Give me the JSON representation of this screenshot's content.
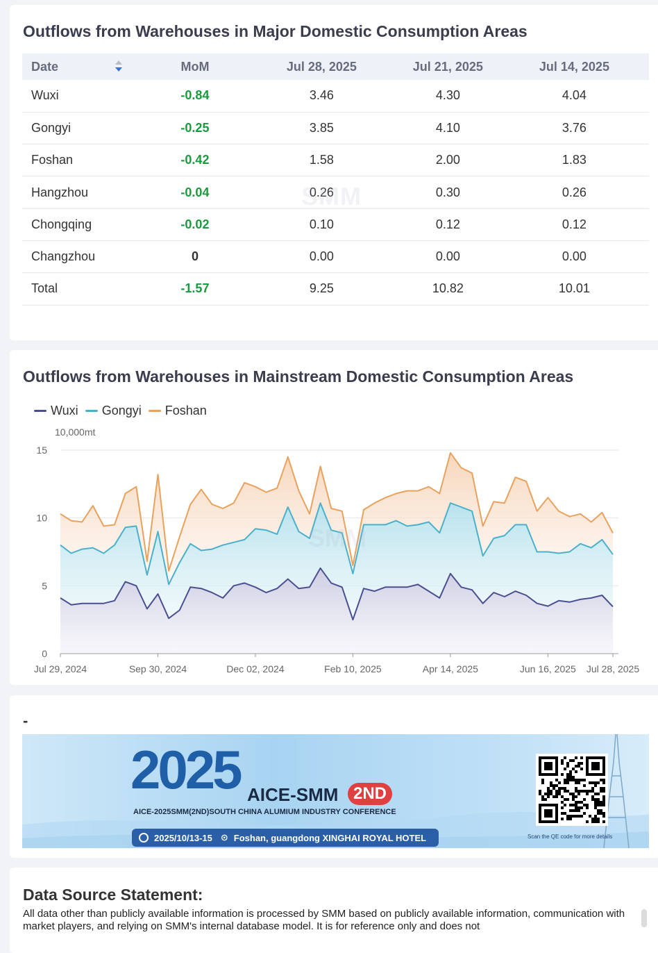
{
  "table_card": {
    "title": "Outflows from Warehouses in Major Domestic Consumption Areas",
    "headers": [
      "Date",
      "MoM",
      "Jul 28, 2025",
      "Jul 21, 2025",
      "Jul 14, 2025"
    ],
    "rows": [
      {
        "name": "Wuxi",
        "mom": "-0.84",
        "v1": "3.46",
        "v2": "4.30",
        "v3": "4.04"
      },
      {
        "name": "Gongyi",
        "mom": "-0.25",
        "v1": "3.85",
        "v2": "4.10",
        "v3": "3.76"
      },
      {
        "name": "Foshan",
        "mom": "-0.42",
        "v1": "1.58",
        "v2": "2.00",
        "v3": "1.83"
      },
      {
        "name": "Hangzhou",
        "mom": "-0.04",
        "v1": "0.26",
        "v2": "0.30",
        "v3": "0.26"
      },
      {
        "name": "Chongqing",
        "mom": "-0.02",
        "v1": "0.10",
        "v2": "0.12",
        "v3": "0.12"
      },
      {
        "name": "Changzhou",
        "mom": "0",
        "v1": "0.00",
        "v2": "0.00",
        "v3": "0.00"
      },
      {
        "name": "Total",
        "mom": "-1.57",
        "v1": "9.25",
        "v2": "10.82",
        "v3": "10.01"
      }
    ],
    "watermark": "SMM"
  },
  "chart_card": {
    "title": "Outflows from Warehouses in Mainstream Domestic Consumption Areas"
  },
  "chart_data": {
    "type": "area",
    "ylabel": "10,000mt",
    "ylim": [
      0,
      15
    ],
    "yticks": [
      "0",
      "5",
      "10",
      "15"
    ],
    "xtick_labels": [
      {
        "label": "Jul 29, 2024",
        "index": 0
      },
      {
        "label": "Sep 30, 2024",
        "index": 9
      },
      {
        "label": "Dec 02, 2024",
        "index": 18
      },
      {
        "label": "Feb 10, 2025",
        "index": 27
      },
      {
        "label": "Apr 14, 2025",
        "index": 36
      },
      {
        "label": "Jun 16, 2025",
        "index": 45
      },
      {
        "label": "Jul 28, 2025",
        "index": 51
      }
    ],
    "legend_position": "top-left",
    "grid": "horizontal",
    "stacked": true,
    "series": [
      {
        "name": "Wuxi",
        "color": "#4a4f8f",
        "values": [
          4.1,
          3.6,
          3.7,
          3.7,
          3.7,
          3.9,
          5.3,
          5.0,
          3.3,
          4.4,
          2.6,
          3.2,
          4.9,
          4.8,
          4.5,
          4.1,
          5.0,
          5.2,
          4.9,
          4.5,
          4.8,
          5.5,
          4.8,
          4.9,
          6.3,
          5.2,
          4.9,
          2.5,
          4.8,
          4.6,
          4.9,
          4.9,
          4.9,
          5.1,
          4.6,
          4.1,
          5.9,
          4.9,
          4.7,
          3.7,
          4.5,
          4.2,
          4.6,
          4.3,
          3.7,
          3.5,
          3.9,
          3.8,
          4.0,
          4.1,
          4.3,
          3.46
        ]
      },
      {
        "name": "Gongyi",
        "color": "#4ab0cc",
        "values": [
          3.9,
          3.8,
          4.0,
          4.1,
          3.7,
          4.1,
          4.0,
          4.4,
          2.5,
          4.6,
          2.5,
          3.5,
          3.2,
          2.8,
          3.2,
          3.9,
          3.2,
          3.2,
          4.3,
          4.6,
          4.0,
          5.3,
          4.2,
          3.6,
          4.8,
          3.9,
          4.0,
          3.4,
          4.7,
          4.9,
          4.6,
          4.9,
          4.5,
          4.4,
          5.1,
          4.8,
          5.2,
          5.9,
          5.8,
          3.5,
          4.0,
          4.5,
          4.9,
          5.2,
          3.8,
          4.0,
          3.5,
          3.7,
          4.1,
          3.7,
          4.1,
          3.85
        ]
      },
      {
        "name": "Foshan",
        "color": "#e8a25e",
        "values": [
          2.3,
          2.4,
          2.0,
          3.1,
          2.0,
          1.5,
          2.5,
          2.9,
          1.0,
          4.2,
          1.0,
          1.9,
          2.9,
          4.5,
          3.3,
          2.7,
          2.9,
          4.2,
          3.1,
          2.8,
          3.4,
          3.7,
          3.0,
          1.8,
          2.7,
          1.6,
          1.6,
          0.6,
          1.1,
          1.6,
          2.0,
          2.0,
          2.6,
          2.5,
          2.6,
          2.9,
          3.7,
          2.9,
          2.8,
          2.2,
          2.7,
          2.4,
          3.5,
          3.2,
          3.0,
          4.0,
          3.1,
          2.6,
          2.2,
          1.9,
          2.0,
          1.58
        ]
      }
    ],
    "watermark": "SMM"
  },
  "banner_card": {
    "title": "-",
    "banner": {
      "year": "2025",
      "brand": "AICE-SMM",
      "badge": "2ND",
      "subtitle": "AICE-2025SMM(2ND)SOUTH CHINA ALUMIUM INDUSTRY CONFERENCE",
      "date": "2025/10/13-15",
      "location": "Foshan, guangdong XINGHAI ROYAL HOTEL",
      "qr_caption": "Scan the QE code for more details"
    }
  },
  "source_card": {
    "title": "Data Source Statement:",
    "text": "All data other than publicly available information is processed by SMM based on publicly available information, communication with market players, and relying on SMM's internal database model. It is for reference only and does not"
  },
  "colors": {
    "accent_green": "#1a9a3e",
    "header_bg": "#eef1f8"
  }
}
